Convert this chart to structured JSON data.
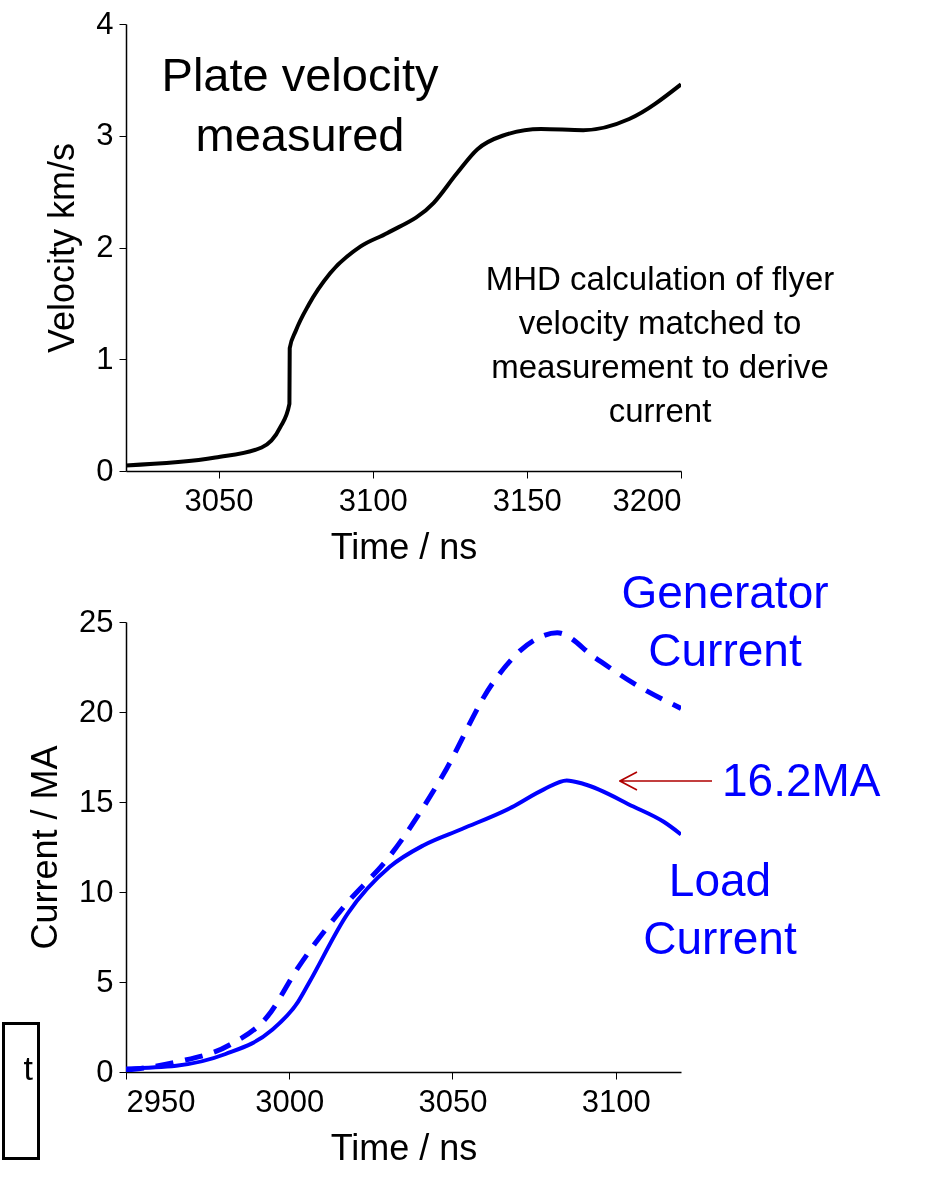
{
  "chart_data": [
    {
      "type": "line",
      "title": "Plate velocity measured",
      "xlabel": "Time / ns",
      "ylabel": "Velocity km/s",
      "annotations": [
        "MHD calculation of flyer velocity matched to measurement to derive current"
      ],
      "xlim": [
        3020,
        3200
      ],
      "xticks": [
        3050,
        3100,
        3150,
        3200
      ],
      "ylim": [
        0,
        4
      ],
      "yticks": [
        0,
        1,
        2,
        3,
        4
      ],
      "grid": false,
      "marker": "none",
      "series": [
        {
          "color": "#000000",
          "line_style": "solid",
          "x": [
            3020,
            3049,
            3064,
            3070,
            3073,
            3073.1,
            3075,
            3079.3,
            3086.2,
            3096.1,
            3104.8,
            3119.8,
            3127.2,
            3134,
            3142.1,
            3154.6,
            3168.3,
            3183.2,
            3200
          ],
          "values": [
            0.05,
            0.12,
            0.21,
            0.39,
            0.6,
            1.1,
            1.25,
            1.49,
            1.77,
            2.01,
            2.13,
            2.4,
            2.66,
            2.88,
            3.0,
            3.06,
            3.05,
            3.15,
            3.46
          ]
        }
      ]
    },
    {
      "type": "line",
      "xlabel": "Time / ns",
      "ylabel": "Current / MA",
      "annotations": [
        "16.2MA",
        "t"
      ],
      "xlim": [
        2950,
        3120
      ],
      "xticks": [
        2950,
        3000,
        3050,
        3100
      ],
      "ylim": [
        0,
        25
      ],
      "yticks": [
        0,
        5,
        10,
        15,
        20,
        25
      ],
      "grid": false,
      "marker": "none",
      "series": [
        {
          "name": "Generator Current",
          "color": "#0000ff",
          "line_style": "dashed",
          "x": [
            2950,
            2965.4,
            2981.7,
            2993.4,
            3002.7,
            3016.8,
            3030.8,
            3047.1,
            3062.3,
            3075.1,
            3082.1,
            3093.8,
            3105.4,
            3120
          ],
          "values": [
            0.1,
            0.55,
            1.5,
            3.1,
            5.8,
            9.2,
            12.0,
            16.5,
            21.6,
            24.0,
            24.4,
            23.0,
            21.6,
            20.2
          ]
        },
        {
          "name": "Load Current",
          "color": "#0000ff",
          "line_style": "solid",
          "x": [
            2950,
            2965.4,
            2980.5,
            2994.5,
            3002.7,
            3006.2,
            3017.9,
            3030.8,
            3041.2,
            3052.9,
            3068.1,
            3078,
            3085,
            3090.2,
            3105.4,
            3114.7,
            3120
          ],
          "values": [
            0.2,
            0.35,
            1.0,
            2.3,
            3.9,
            5.0,
            8.8,
            11.4,
            12.6,
            13.5,
            14.7,
            15.7,
            16.2,
            16.0,
            14.75,
            13.9,
            13.2
          ]
        }
      ]
    }
  ]
}
